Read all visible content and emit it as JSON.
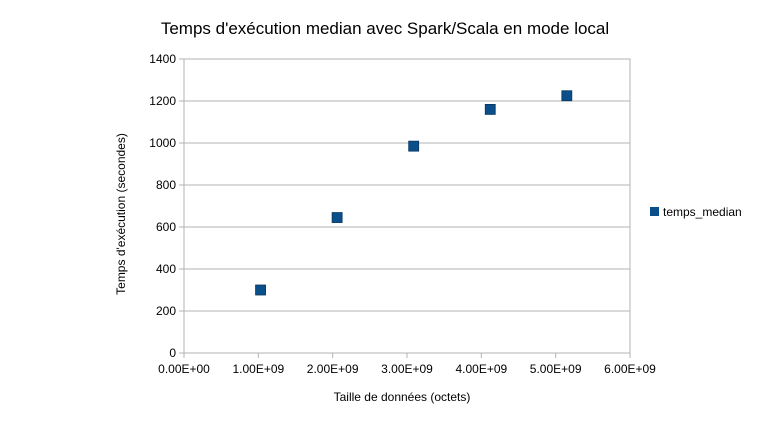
{
  "chart_data": {
    "type": "scatter",
    "title": "Temps d'exécution median avec Spark/Scala en mode local",
    "xlabel": "Taille de données (octets)",
    "ylabel": "Temps d'exécution (secondes)",
    "xlim": [
      0,
      6000000000
    ],
    "ylim": [
      0,
      1400
    ],
    "x_ticks": [
      0,
      1000000000,
      2000000000,
      3000000000,
      4000000000,
      5000000000,
      6000000000
    ],
    "x_tick_labels": [
      "0.00E+00",
      "1.00E+09",
      "2.00E+09",
      "3.00E+09",
      "4.00E+09",
      "5.00E+09",
      "6.00E+09"
    ],
    "y_ticks": [
      0,
      200,
      400,
      600,
      800,
      1000,
      1200,
      1400
    ],
    "y_tick_labels": [
      "0",
      "200",
      "400",
      "600",
      "800",
      "1000",
      "1200",
      "1400"
    ],
    "grid": "horizontal",
    "legend": "right",
    "series": [
      {
        "name": "temps_median",
        "color": "#0b4f8a",
        "marker": "square",
        "x": [
          1030000000,
          2060000000,
          3090000000,
          4120000000,
          5150000000
        ],
        "y": [
          300,
          645,
          985,
          1160,
          1225
        ]
      }
    ]
  }
}
